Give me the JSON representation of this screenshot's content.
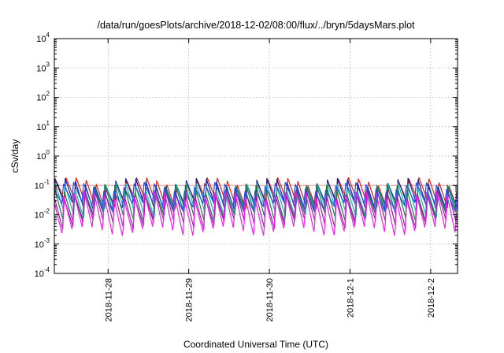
{
  "chart_data": {
    "type": "line",
    "title": "/data/run/goesPlots/archive/2018-12-02/08:00/flux/../bryn/5daysMars.plot",
    "xlabel": "Coordinated Universal Time (UTC)",
    "ylabel": "cSv/day",
    "y_scale": "log",
    "ylim": [
      0.0001,
      10000
    ],
    "y_ticks": [
      {
        "base": "10",
        "exp": "-4"
      },
      {
        "base": "10",
        "exp": "-3"
      },
      {
        "base": "10",
        "exp": "-2"
      },
      {
        "base": "10",
        "exp": "-1"
      },
      {
        "base": "10",
        "exp": "0"
      },
      {
        "base": "10",
        "exp": "1"
      },
      {
        "base": "10",
        "exp": "2"
      },
      {
        "base": "10",
        "exp": "3"
      },
      {
        "base": "10",
        "exp": "4"
      }
    ],
    "xlim": [
      "2018-11-27T08:00",
      "2018-12-02T08:00"
    ],
    "x_ticks": [
      "2018-11-28",
      "2018-11-29",
      "2018-11-30",
      "2018-12-1",
      "2018-12-2"
    ],
    "grid": true,
    "reference_line": {
      "y": 0.1,
      "color": "#e8a0a0"
    },
    "oscillation_period_hours": 3,
    "series": [
      {
        "color": "#e51e10",
        "peak": 0.15,
        "trough": 0.025
      },
      {
        "color": "#1a1a8f",
        "peak": 0.13,
        "trough": 0.018
      },
      {
        "color": "#1fb0b0",
        "peak": 0.1,
        "trough": 0.012
      },
      {
        "color": "#0d8040",
        "peak": 0.08,
        "trough": 0.008
      },
      {
        "color": "#9020a0",
        "peak": 0.06,
        "trough": 0.005
      },
      {
        "color": "#f020f0",
        "peak": 0.05,
        "trough": 0.0025
      },
      {
        "color": "#2050e0",
        "peak": 0.1,
        "trough": 0.02
      }
    ]
  }
}
